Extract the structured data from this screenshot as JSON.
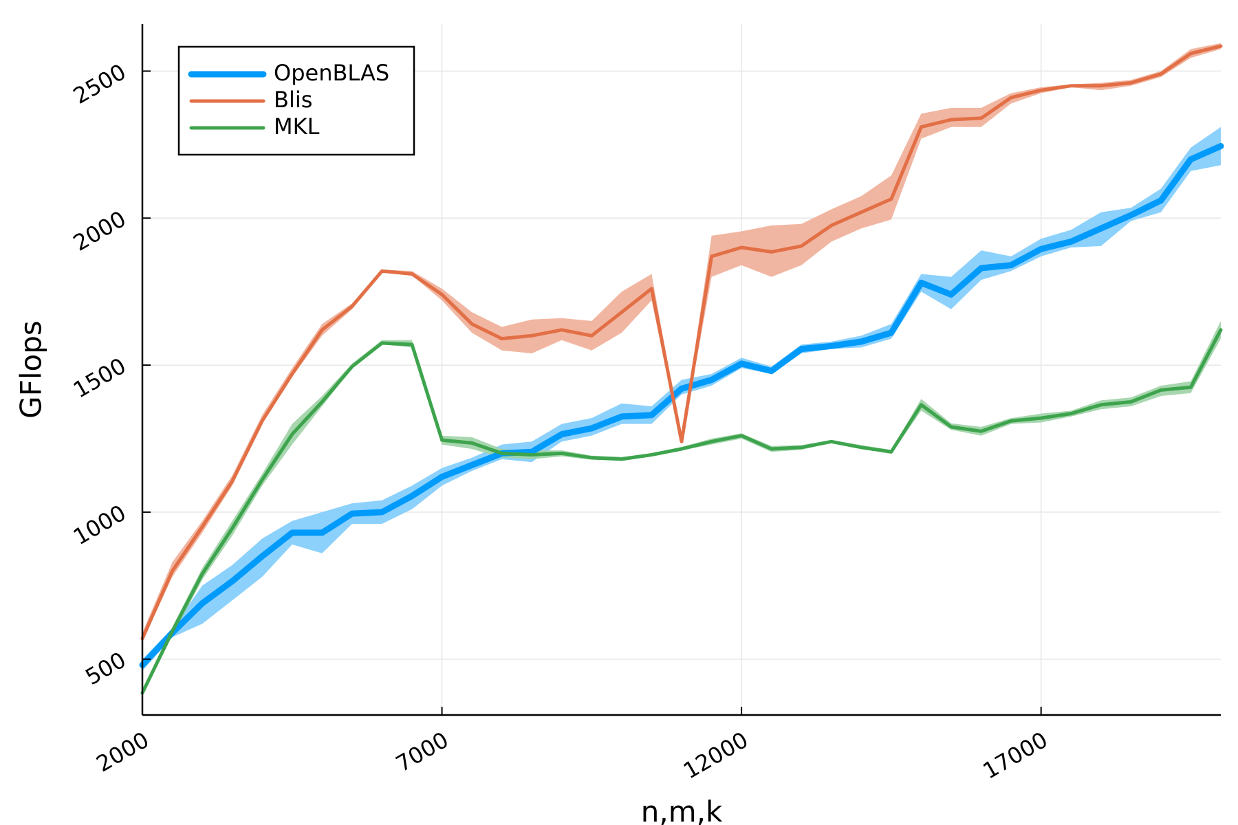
{
  "chart_data": {
    "type": "line",
    "xlabel": "n,m,k",
    "ylabel": "GFlops",
    "xlim": [
      2000,
      20000
    ],
    "ylim": [
      310,
      2660
    ],
    "xticks": [
      2000,
      7000,
      12000,
      17000
    ],
    "yticks": [
      500,
      1000,
      1500,
      2000,
      2500
    ],
    "xtick_labels": [
      "2000",
      "7000",
      "12000",
      "17000"
    ],
    "ytick_labels": [
      "500",
      "1000",
      "1500",
      "2000",
      "2500"
    ],
    "grid": true,
    "legend_position": "top-left",
    "x": [
      2000,
      2500,
      3000,
      3500,
      4000,
      4500,
      5000,
      5500,
      6000,
      6500,
      7000,
      7500,
      8000,
      8500,
      9000,
      9500,
      10000,
      10500,
      11000,
      11500,
      12000,
      12500,
      13000,
      13500,
      14000,
      14500,
      15000,
      15500,
      16000,
      16500,
      17000,
      17500,
      18000,
      18500,
      19000,
      19500,
      20000
    ],
    "series": [
      {
        "name": "OpenBLAS",
        "color": "#009AFA",
        "band_color": "#7FCCFC",
        "values": [
          480,
          590,
          690,
          765,
          850,
          930,
          930,
          995,
          1000,
          1055,
          1120,
          1160,
          1200,
          1205,
          1265,
          1285,
          1325,
          1330,
          1420,
          1450,
          1505,
          1480,
          1555,
          1565,
          1580,
          1610,
          1780,
          1740,
          1830,
          1840,
          1895,
          1920,
          1965,
          2010,
          2060,
          2200,
          2245
        ],
        "lower": [
          460,
          575,
          620,
          700,
          780,
          890,
          860,
          960,
          960,
          1010,
          1090,
          1140,
          1180,
          1170,
          1240,
          1260,
          1300,
          1300,
          1400,
          1430,
          1490,
          1470,
          1540,
          1555,
          1560,
          1590,
          1750,
          1690,
          1790,
          1820,
          1870,
          1900,
          1905,
          1990,
          2020,
          2160,
          2180
        ],
        "upper": [
          500,
          605,
          750,
          820,
          910,
          970,
          1000,
          1030,
          1040,
          1090,
          1150,
          1185,
          1230,
          1240,
          1300,
          1320,
          1370,
          1360,
          1450,
          1470,
          1525,
          1495,
          1570,
          1580,
          1600,
          1640,
          1810,
          1800,
          1890,
          1870,
          1930,
          1960,
          2020,
          2035,
          2100,
          2240,
          2310
        ]
      },
      {
        "name": "Blis",
        "color": "#E26F46",
        "band_color": "#EFAE97",
        "values": [
          570,
          800,
          950,
          1105,
          1310,
          1470,
          1620,
          1700,
          1820,
          1810,
          1740,
          1640,
          1590,
          1600,
          1620,
          1600,
          1680,
          1760,
          1240,
          1870,
          1900,
          1885,
          1905,
          1975,
          2020,
          2065,
          2310,
          2335,
          2340,
          2410,
          2435,
          2450,
          2450,
          2460,
          2490,
          2560,
          2585
        ],
        "lower": [
          560,
          780,
          930,
          1090,
          1300,
          1460,
          1600,
          1690,
          1815,
          1805,
          1720,
          1610,
          1550,
          1540,
          1585,
          1550,
          1610,
          1720,
          1235,
          1800,
          1840,
          1800,
          1840,
          1920,
          1965,
          1995,
          2270,
          2310,
          2310,
          2390,
          2425,
          2445,
          2435,
          2450,
          2480,
          2545,
          2575
        ],
        "upper": [
          590,
          830,
          970,
          1125,
          1330,
          1490,
          1640,
          1710,
          1825,
          1820,
          1760,
          1680,
          1630,
          1655,
          1660,
          1650,
          1750,
          1810,
          1250,
          1940,
          1955,
          1975,
          1980,
          2030,
          2075,
          2145,
          2355,
          2375,
          2375,
          2425,
          2445,
          2455,
          2460,
          2470,
          2500,
          2575,
          2595
        ]
      },
      {
        "name": "MKL",
        "color": "#3DA44D",
        "band_color": "#9ED1A6",
        "values": [
          385,
          595,
          790,
          945,
          1110,
          1265,
          1375,
          1495,
          1575,
          1570,
          1245,
          1235,
          1200,
          1195,
          1200,
          1185,
          1180,
          1195,
          1215,
          1240,
          1260,
          1215,
          1220,
          1240,
          1220,
          1205,
          1365,
          1290,
          1275,
          1310,
          1320,
          1335,
          1365,
          1375,
          1415,
          1425,
          1620
        ],
        "lower": [
          375,
          580,
          770,
          920,
          1090,
          1230,
          1360,
          1490,
          1570,
          1560,
          1230,
          1215,
          1185,
          1180,
          1190,
          1178,
          1175,
          1190,
          1210,
          1230,
          1250,
          1205,
          1212,
          1235,
          1215,
          1198,
          1345,
          1280,
          1260,
          1300,
          1305,
          1325,
          1350,
          1360,
          1395,
          1405,
          1590
        ],
        "upper": [
          395,
          610,
          810,
          970,
          1130,
          1300,
          1395,
          1505,
          1585,
          1585,
          1260,
          1255,
          1215,
          1210,
          1210,
          1192,
          1188,
          1200,
          1222,
          1250,
          1268,
          1225,
          1228,
          1245,
          1228,
          1212,
          1385,
          1302,
          1290,
          1320,
          1335,
          1345,
          1380,
          1390,
          1430,
          1445,
          1650
        ]
      }
    ]
  }
}
